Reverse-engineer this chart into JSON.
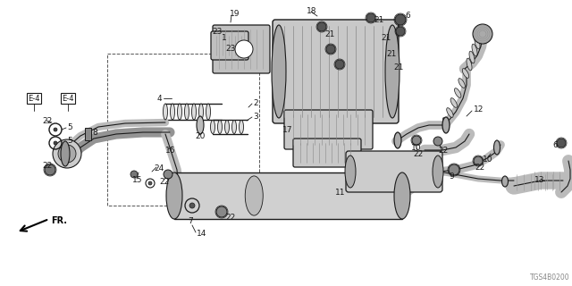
{
  "diagram_code": "TGS4B0200",
  "bg_color": "#ffffff",
  "lc": "#1a1a1a",
  "fig_width": 6.4,
  "fig_height": 3.2,
  "dpi": 100
}
